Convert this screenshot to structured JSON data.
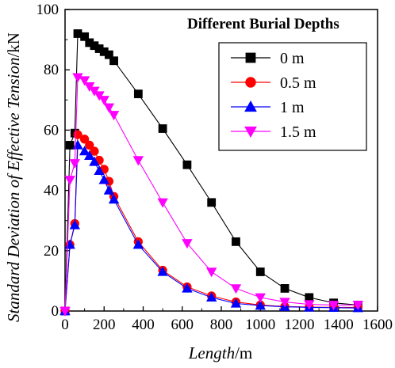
{
  "chart_data": {
    "type": "line",
    "title": "",
    "xlabel_italic": "Length",
    "xlabel_unit": "/m",
    "ylabel_italic": "Standard Deviation of Effective Tension",
    "ylabel_unit": "/kN",
    "xlim": [
      0,
      1600
    ],
    "ylim": [
      0,
      100
    ],
    "xticks": [
      0,
      200,
      400,
      600,
      800,
      1000,
      1200,
      1400,
      1600
    ],
    "yticks": [
      0,
      20,
      40,
      60,
      80,
      100
    ],
    "grid": false,
    "legend_title": "Different Burial Depths",
    "legend_position": "top-right",
    "series": [
      {
        "name": "0 m",
        "color": "#000000",
        "marker": "square",
        "x": [
          0,
          25,
          50,
          65,
          100,
          125,
          150,
          175,
          200,
          225,
          250,
          375,
          500,
          625,
          750,
          875,
          1000,
          1125,
          1250,
          1375,
          1500
        ],
        "y": [
          0,
          55,
          59,
          92,
          91,
          89,
          88,
          87,
          86,
          85,
          83,
          72,
          60.5,
          48.5,
          36,
          23,
          13,
          7.5,
          4.5,
          2.7,
          2
        ]
      },
      {
        "name": "0.5 m",
        "color": "#ff0000",
        "marker": "circle",
        "x": [
          0,
          25,
          50,
          65,
          100,
          125,
          150,
          175,
          200,
          225,
          250,
          375,
          500,
          625,
          750,
          875,
          1000,
          1125,
          1250,
          1375,
          1500
        ],
        "y": [
          0,
          22,
          29,
          58.5,
          57,
          55,
          53,
          50,
          47,
          43,
          38,
          23,
          13.5,
          8,
          5,
          3,
          2,
          1.5,
          1.3,
          1.2,
          1.2
        ]
      },
      {
        "name": "1 m",
        "color": "#0000ff",
        "marker": "triangle-up",
        "x": [
          0,
          25,
          50,
          65,
          100,
          125,
          150,
          175,
          200,
          225,
          250,
          375,
          500,
          625,
          750,
          875,
          1000,
          1125,
          1250,
          1375,
          1500
        ],
        "y": [
          0,
          22,
          28.5,
          55,
          53,
          51.5,
          49.5,
          46.5,
          43.5,
          40,
          37,
          22,
          13,
          7.5,
          4.5,
          2.5,
          1.8,
          1.4,
          1.2,
          1.1,
          1
        ]
      },
      {
        "name": "1.5 m",
        "color": "#ff00ff",
        "marker": "triangle-down",
        "x": [
          0,
          25,
          50,
          65,
          100,
          125,
          150,
          175,
          200,
          225,
          250,
          375,
          500,
          625,
          750,
          875,
          1000,
          1125,
          1250,
          1375,
          1500
        ],
        "y": [
          0,
          43.5,
          49,
          77.5,
          76.5,
          74.5,
          73,
          71.5,
          70,
          67.5,
          65,
          50,
          36,
          22.5,
          13,
          7.5,
          4.5,
          3,
          2.2,
          2,
          2
        ]
      }
    ]
  }
}
